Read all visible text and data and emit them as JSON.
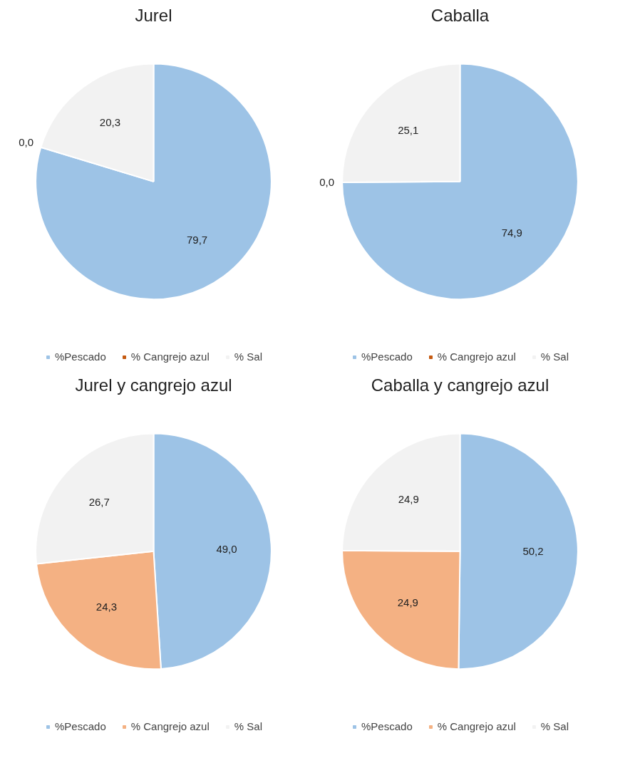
{
  "chart_data": [
    {
      "type": "pie",
      "title": "Jurel",
      "categories": [
        "%Pescado",
        "% Cangrejo azul",
        "% Sal"
      ],
      "values": [
        79.7,
        0.0,
        20.3
      ],
      "colors": [
        "#9dc3e6",
        "#c55a11",
        "#f2f2f2"
      ],
      "value_labels": [
        "79,7",
        "0,0",
        "20,3"
      ],
      "legend": "bottom"
    },
    {
      "type": "pie",
      "title": "Caballa",
      "categories": [
        "%Pescado",
        "% Cangrejo azul",
        "% Sal"
      ],
      "values": [
        74.9,
        0.0,
        25.1
      ],
      "colors": [
        "#9dc3e6",
        "#c55a11",
        "#f2f2f2"
      ],
      "value_labels": [
        "74,9",
        "0,0",
        "25,1"
      ],
      "legend": "bottom"
    },
    {
      "type": "pie",
      "title": "Jurel y cangrejo azul",
      "categories": [
        "%Pescado",
        "% Cangrejo azul",
        "% Sal"
      ],
      "values": [
        49.0,
        24.3,
        26.7
      ],
      "colors": [
        "#9dc3e6",
        "#f4b183",
        "#f2f2f2"
      ],
      "value_labels": [
        "49,0",
        "24,3",
        "26,7"
      ],
      "legend": "bottom"
    },
    {
      "type": "pie",
      "title": "Caballa y cangrejo azul",
      "categories": [
        "%Pescado",
        "% Cangrejo azul",
        "% Sal"
      ],
      "values": [
        50.2,
        24.9,
        24.9
      ],
      "colors": [
        "#9dc3e6",
        "#f4b183",
        "#f2f2f2"
      ],
      "value_labels": [
        "50,2",
        "24,9",
        "24,9"
      ],
      "legend": "bottom"
    }
  ]
}
